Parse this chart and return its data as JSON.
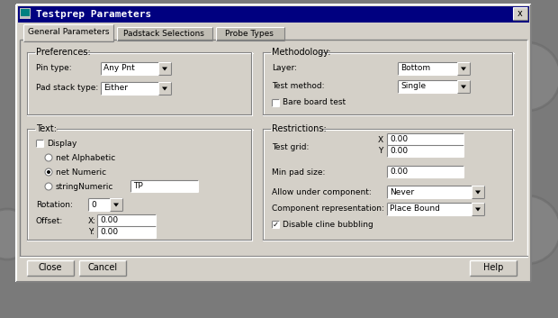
{
  "title": "Testprep Parameters",
  "bg_color": "#c0c0c0",
  "dialog_bg": "#d4d0c8",
  "window_bg": "#ffffff",
  "border_color": "#808080",
  "text_color": "#000000",
  "tab_labels": [
    "General Parameters",
    "Padstack Selections",
    "Probe Types"
  ],
  "section_preferences": "Preferences:",
  "section_methodology": "Methodology:",
  "bare_board_test": "Bare board test",
  "section_text": "Text:",
  "text_fields": {
    "display": "Display",
    "radio1": "net Alphabetic",
    "radio2": "net Numeric",
    "radio3": "stringNumeric",
    "string_value": "TP",
    "rotation_label": "Rotation:",
    "rotation_value": "0",
    "offset_label": "Offset:",
    "offset_x": "0.00",
    "offset_y": "0.00"
  },
  "section_restrictions": "Restrictions:",
  "restrict_fields": {
    "test_grid_label": "Test grid:",
    "test_grid_x": "0.00",
    "test_grid_y": "0.00",
    "min_pad_label": "Min pad size:",
    "min_pad_value": "0.00",
    "allow_label": "Allow under component:",
    "allow_value": "Never",
    "comp_rep_label": "Component representation:",
    "comp_rep_value": "Place Bound",
    "disable_cline": "Disable cline bubbling"
  },
  "buttons": [
    "Close",
    "Cancel",
    "Help"
  ],
  "outer_bg": "#7a7a7a",
  "title_bar_color": "#000080",
  "title_text_color": "#ffffff",
  "font_size": 7.5,
  "small_font": 6.5
}
